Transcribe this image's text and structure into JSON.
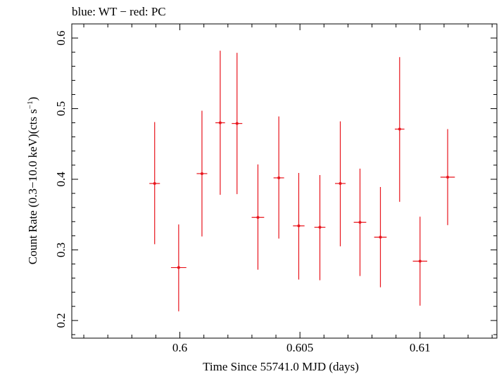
{
  "chart_data": {
    "type": "scatter",
    "title": "blue: WT − red: PC",
    "xlabel": "Time Since 55741.0 MJD (days)",
    "ylabel_main": "Count Rate (0.3−10.0 keV)(cts s",
    "ylabel_sup": "−1",
    "ylabel_close": ")",
    "xlim": [
      0.5955,
      0.6132
    ],
    "ylim": [
      0.175,
      0.62
    ],
    "x_ticks": [
      0.6,
      0.605,
      0.61
    ],
    "x_tick_labels": [
      "0.6",
      "0.605",
      "0.61"
    ],
    "y_ticks": [
      0.2,
      0.3,
      0.4,
      0.5,
      0.6
    ],
    "y_tick_labels": [
      "0.2",
      "0.3",
      "0.4",
      "0.5",
      "0.6"
    ],
    "grid": false,
    "series": [
      {
        "color": "#e8141c",
        "points": [
          {
            "x": 0.59895,
            "xerr": 0.00022,
            "y": 0.394,
            "yerr_lo": 0.086,
            "yerr_hi": 0.087
          },
          {
            "x": 0.59995,
            "xerr": 0.00032,
            "y": 0.275,
            "yerr_lo": 0.062,
            "yerr_hi": 0.061
          },
          {
            "x": 0.60092,
            "xerr": 0.00022,
            "y": 0.408,
            "yerr_lo": 0.089,
            "yerr_hi": 0.089
          },
          {
            "x": 0.60168,
            "xerr": 0.0002,
            "y": 0.48,
            "yerr_lo": 0.102,
            "yerr_hi": 0.102
          },
          {
            "x": 0.60238,
            "xerr": 0.00022,
            "y": 0.479,
            "yerr_lo": 0.1,
            "yerr_hi": 0.1
          },
          {
            "x": 0.60325,
            "xerr": 0.00026,
            "y": 0.346,
            "yerr_lo": 0.074,
            "yerr_hi": 0.075
          },
          {
            "x": 0.60412,
            "xerr": 0.00022,
            "y": 0.402,
            "yerr_lo": 0.086,
            "yerr_hi": 0.087
          },
          {
            "x": 0.60495,
            "xerr": 0.00024,
            "y": 0.334,
            "yerr_lo": 0.076,
            "yerr_hi": 0.075
          },
          {
            "x": 0.60583,
            "xerr": 0.00023,
            "y": 0.332,
            "yerr_lo": 0.075,
            "yerr_hi": 0.074
          },
          {
            "x": 0.60668,
            "xerr": 0.00022,
            "y": 0.394,
            "yerr_lo": 0.089,
            "yerr_hi": 0.088
          },
          {
            "x": 0.6075,
            "xerr": 0.00026,
            "y": 0.339,
            "yerr_lo": 0.076,
            "yerr_hi": 0.076
          },
          {
            "x": 0.60835,
            "xerr": 0.00026,
            "y": 0.318,
            "yerr_lo": 0.071,
            "yerr_hi": 0.071
          },
          {
            "x": 0.60915,
            "xerr": 0.0002,
            "y": 0.471,
            "yerr_lo": 0.103,
            "yerr_hi": 0.102
          },
          {
            "x": 0.61,
            "xerr": 0.0003,
            "y": 0.284,
            "yerr_lo": 0.063,
            "yerr_hi": 0.063
          },
          {
            "x": 0.61115,
            "xerr": 0.0003,
            "y": 0.403,
            "yerr_lo": 0.068,
            "yerr_hi": 0.068
          }
        ]
      }
    ]
  }
}
